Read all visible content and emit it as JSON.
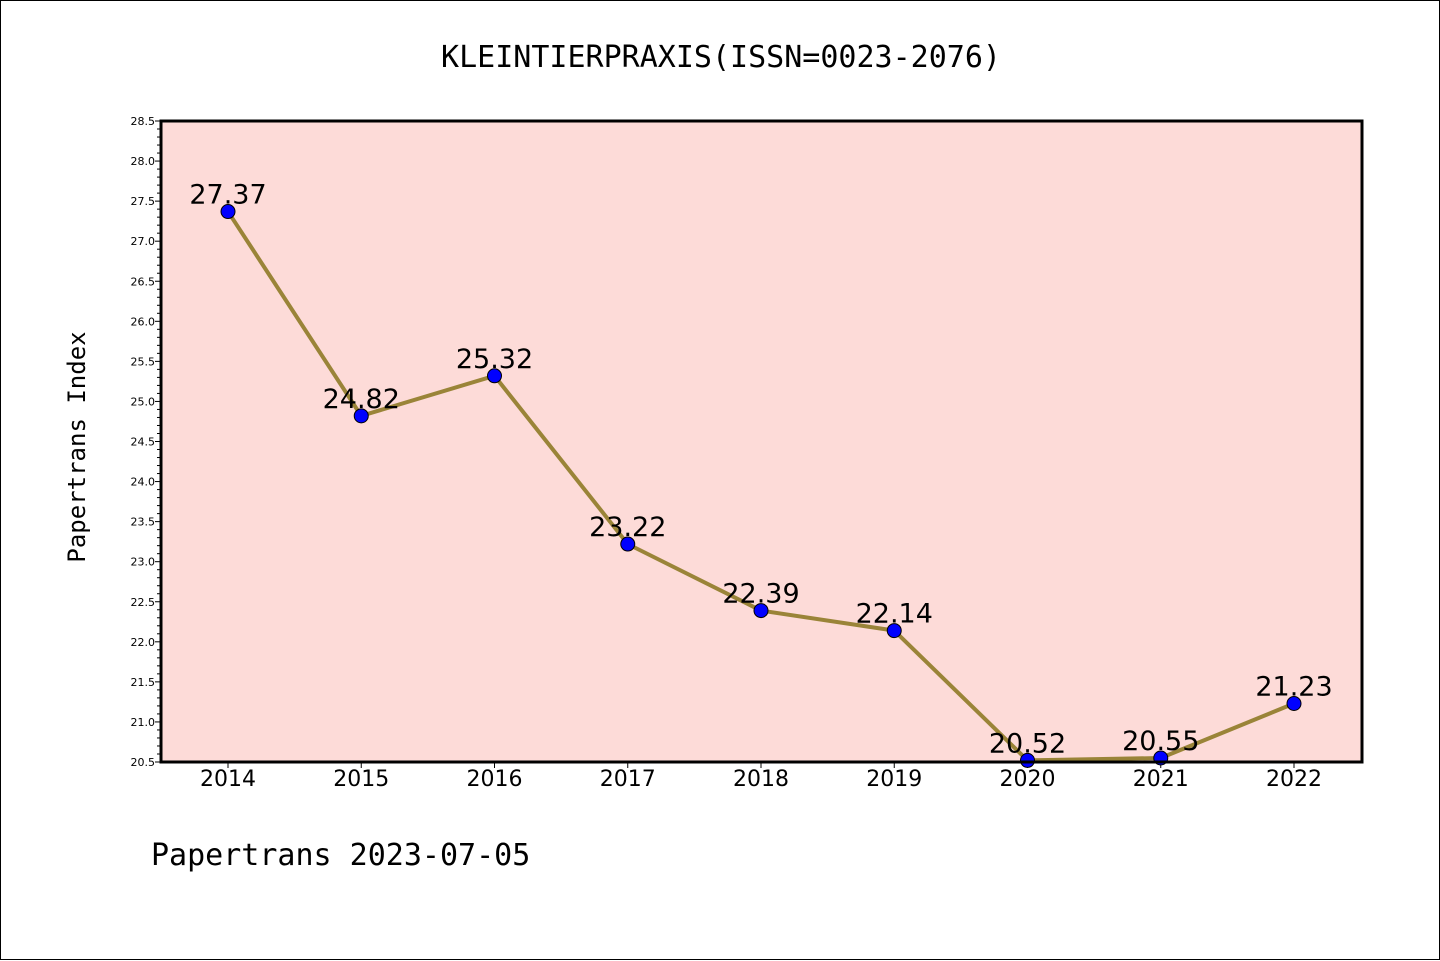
{
  "chart_data": {
    "type": "line",
    "title": "KLEINTIERPRAXIS(ISSN=0023-2076)",
    "xlabel": "",
    "ylabel": "Papertrans Index",
    "footer": "Papertrans 2023-07-05",
    "categories": [
      "2014",
      "2015",
      "2016",
      "2017",
      "2018",
      "2019",
      "2020",
      "2021",
      "2022"
    ],
    "series": [
      {
        "values": [
          27.37,
          24.82,
          25.32,
          23.22,
          22.39,
          22.14,
          20.52,
          20.55,
          21.23
        ],
        "data_labels": [
          "27.37",
          "24.82",
          "25.32",
          "23.22",
          "22.39",
          "22.14",
          "20.52",
          "20.55",
          "21.23"
        ]
      }
    ],
    "ylim": [
      20.5,
      28.5
    ],
    "yticks": [
      "20.5",
      "21.0",
      "21.5",
      "22.0",
      "22.5",
      "23.0",
      "23.5",
      "24.0",
      "24.5",
      "25.0",
      "25.5",
      "26.0",
      "26.5",
      "27.0",
      "27.5",
      "28.0",
      "28.5"
    ],
    "grid": false,
    "legend": "none",
    "colors": {
      "plot_background": "#fddbd8",
      "line": "#9a8438",
      "marker": "#0000ff",
      "axis": "#000000"
    }
  }
}
